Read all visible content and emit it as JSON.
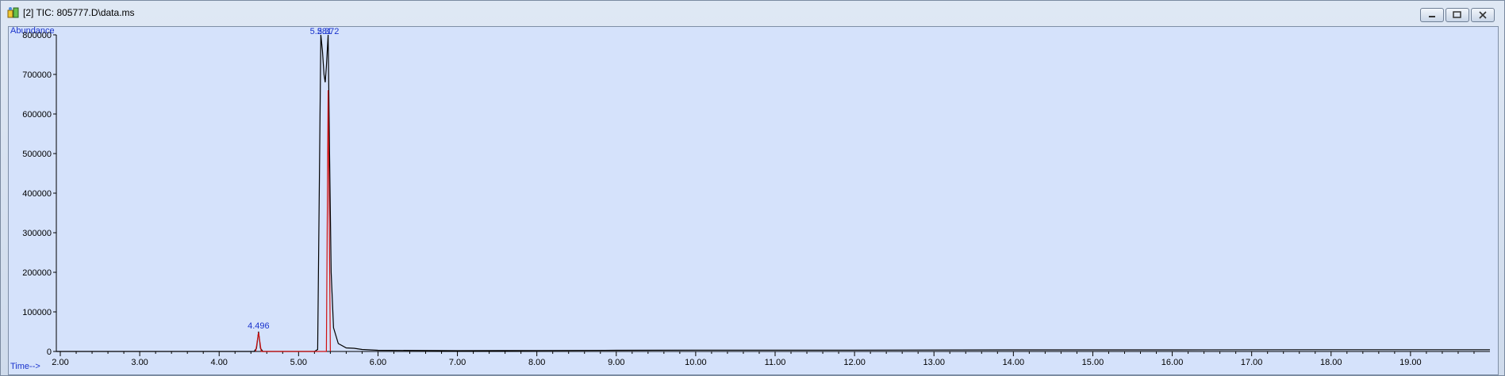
{
  "window": {
    "title": "[2] TIC: 805777.D\\data.ms",
    "buttons": [
      "minimize",
      "restore",
      "close"
    ]
  },
  "colors": {
    "plot_bg": "#d5e2fb",
    "trace": "#000000",
    "integration": "#d01010",
    "label_blue": "#1a33cc"
  },
  "chart_data": {
    "type": "line",
    "ylabel": "Abundance",
    "xlabel": "Time-->",
    "xlim": [
      1.95,
      20.0
    ],
    "ylim": [
      0,
      800000
    ],
    "x_ticks": [
      "2.00",
      "3.00",
      "4.00",
      "5.00",
      "6.00",
      "7.00",
      "8.00",
      "9.00",
      "10.00",
      "11.00",
      "12.00",
      "13.00",
      "14.00",
      "15.00",
      "16.00",
      "17.00",
      "18.00",
      "19.00"
    ],
    "y_ticks": [
      "0",
      "100000",
      "200000",
      "300000",
      "400000",
      "500000",
      "600000",
      "700000",
      "800000"
    ],
    "peak_labels": [
      {
        "x": 4.496,
        "y": 50000,
        "label": "4.496"
      },
      {
        "x": 5.28,
        "y": 800000,
        "label": "5.281"
      },
      {
        "x": 5.372,
        "y": 800000,
        "label": "5.372"
      }
    ],
    "series": [
      {
        "name": "TIC",
        "x": [
          1.95,
          4.44,
          4.47,
          4.496,
          4.52,
          4.55,
          5.2,
          5.24,
          5.26,
          5.28,
          5.3,
          5.32,
          5.335,
          5.35,
          5.372,
          5.39,
          5.41,
          5.44,
          5.5,
          5.6,
          5.7,
          5.8,
          6.0,
          7.0,
          8.0,
          9.0,
          10.0,
          12.0,
          14.0,
          16.0,
          18.0,
          20.0
        ],
        "y": [
          0,
          0,
          8000,
          50000,
          8000,
          0,
          0,
          5000,
          400000,
          800000,
          760000,
          700000,
          680000,
          720000,
          800000,
          500000,
          200000,
          60000,
          20000,
          9000,
          8000,
          5000,
          3000,
          2000,
          2500,
          3000,
          3500,
          3500,
          4000,
          4000,
          4500,
          4500
        ]
      },
      {
        "name": "integration",
        "x": [
          4.46,
          4.496,
          4.53,
          5.35,
          5.372,
          5.4
        ],
        "y": [
          0,
          48000,
          0,
          0,
          660000,
          0
        ]
      }
    ]
  }
}
